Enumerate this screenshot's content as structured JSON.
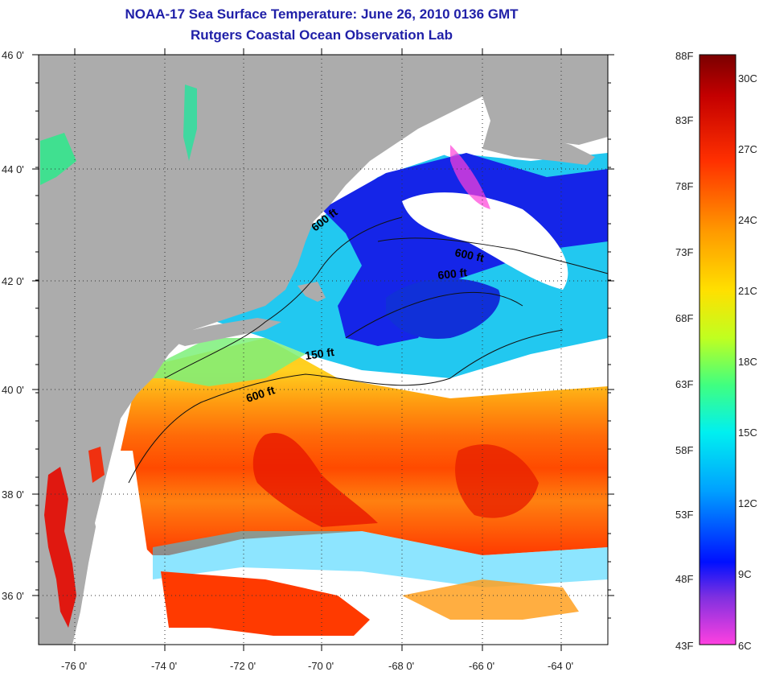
{
  "title": "NOAA-17 Sea Surface Temperature:  June 26, 2010 0136 GMT",
  "subtitle": "Rutgers Coastal Ocean Observation Lab",
  "lat_ticks": [
    "46 0'",
    "44 0'",
    "42 0'",
    "40 0'",
    "38 0'",
    "36 0'"
  ],
  "lon_ticks": [
    "-76 0'",
    "-74 0'",
    "-72 0'",
    "-70 0'",
    "-68 0'",
    "-66 0'",
    "-64 0'"
  ],
  "contour_labels": [
    "600 ft",
    "600 ft",
    "600 ft",
    "150 ft",
    "600 ft"
  ],
  "colorbar": {
    "fahrenheit": [
      "88F",
      "83F",
      "78F",
      "73F",
      "68F",
      "63F",
      "58F",
      "53F",
      "48F",
      "43F"
    ],
    "celsius": [
      "30C",
      "27C",
      "24C",
      "21C",
      "18C",
      "15C",
      "12C",
      "9C",
      "6C"
    ]
  },
  "colors": {
    "land": "#acacac",
    "cloud": "#ffffff",
    "warm": "#ff3a00",
    "cold": "#1020e0",
    "title": "#2020a8"
  }
}
